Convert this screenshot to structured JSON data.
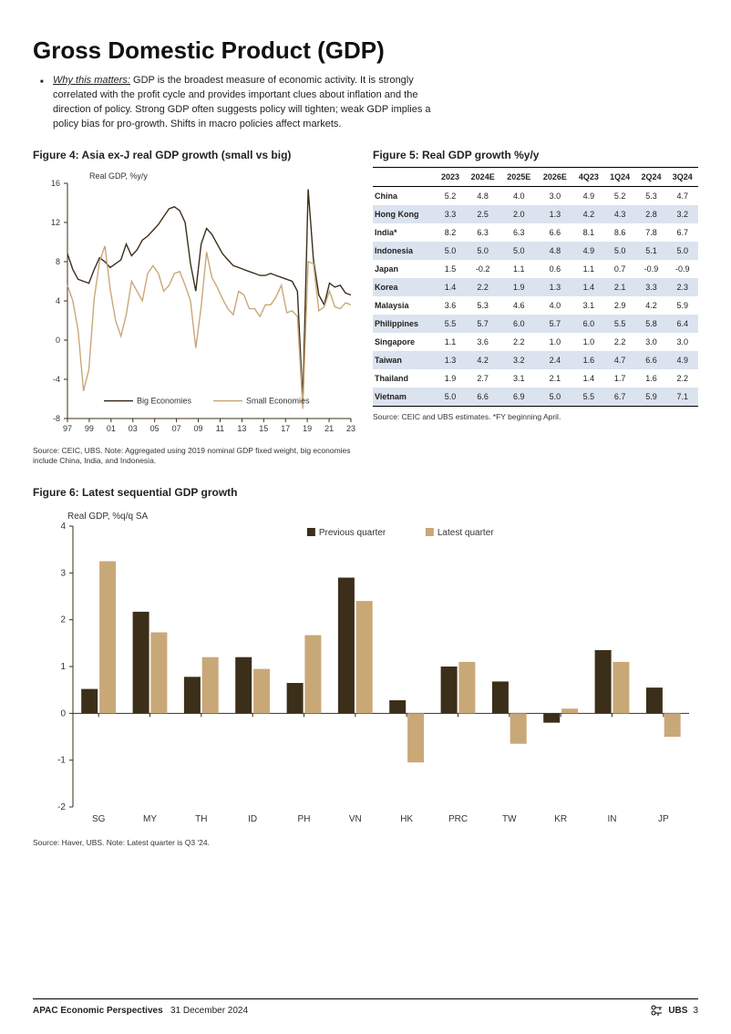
{
  "page": {
    "title": "Gross Domestic Product (GDP)",
    "why_lead": "Why this matters:",
    "why_body": " GDP is the broadest measure of economic activity. It is strongly correlated with the profit cycle and provides important clues about inflation and the direction of policy. Strong GDP often suggests policy will tighten; weak GDP implies a policy bias for pro-growth. Shifts in macro policies affect markets."
  },
  "fig4": {
    "title": "Figure 4: Asia ex-J real GDP growth (small vs big)",
    "ylabel": "Real GDP, %y/y",
    "ylim": [
      -8,
      16
    ],
    "ytick_step": 4,
    "xticks": [
      "97",
      "99",
      "01",
      "03",
      "05",
      "07",
      "09",
      "11",
      "13",
      "15",
      "17",
      "19",
      "21",
      "23"
    ],
    "legend": {
      "big": "Big Economies",
      "small": "Small Economies"
    },
    "colors": {
      "big": "#3b2f1a",
      "small": "#c9a878",
      "axis": "#3b2f1a",
      "grid": "#ffffff"
    },
    "line_width": 1.4,
    "series_big": [
      8.8,
      7.2,
      6.2,
      6.0,
      5.8,
      7.2,
      8.4,
      8.0,
      7.4,
      7.8,
      8.2,
      9.8,
      8.6,
      9.2,
      10.2,
      10.6,
      11.2,
      11.8,
      12.6,
      13.4,
      13.6,
      13.2,
      12.0,
      7.8,
      5.0,
      9.8,
      11.4,
      10.8,
      9.8,
      8.8,
      8.2,
      7.6,
      7.4,
      7.2,
      7.0,
      6.8,
      6.6,
      6.6,
      6.8,
      6.6,
      6.4,
      6.2,
      6.0,
      5.0,
      -6.2,
      15.4,
      8.2,
      4.6,
      3.6,
      5.8,
      5.4,
      5.6,
      4.8,
      4.6
    ],
    "series_small": [
      5.6,
      4.0,
      1.0,
      -5.2,
      -3.0,
      4.2,
      8.0,
      9.6,
      5.2,
      2.0,
      0.4,
      2.6,
      6.0,
      5.0,
      4.0,
      6.8,
      7.6,
      6.8,
      5.0,
      5.6,
      6.8,
      7.0,
      5.6,
      4.0,
      -0.8,
      3.4,
      9.0,
      6.4,
      5.4,
      4.2,
      3.2,
      2.6,
      5.0,
      4.6,
      3.2,
      3.2,
      2.4,
      3.6,
      3.6,
      4.4,
      5.6,
      2.8,
      3.0,
      2.4,
      -7.0,
      8.0,
      7.8,
      3.0,
      3.4,
      5.0,
      3.4,
      3.2,
      3.8,
      3.6
    ],
    "source": "Source: CEIC, UBS. Note: Aggregated using 2019 nominal GDP fixed weight, big economies include China, India, and Indonesia."
  },
  "fig5": {
    "title": "Figure 5: Real GDP growth %y/y",
    "columns": [
      "",
      "2023",
      "2024E",
      "2025E",
      "2026E",
      "4Q23",
      "1Q24",
      "2Q24",
      "3Q24"
    ],
    "shade_color": "#dbe3ef",
    "rows": [
      {
        "c": "China",
        "v": [
          "5.2",
          "4.8",
          "4.0",
          "3.0",
          "4.9",
          "5.2",
          "5.3",
          "4.7"
        ],
        "shade": false
      },
      {
        "c": "Hong Kong",
        "v": [
          "3.3",
          "2.5",
          "2.0",
          "1.3",
          "4.2",
          "4.3",
          "2.8",
          "3.2"
        ],
        "shade": true
      },
      {
        "c": "India*",
        "v": [
          "8.2",
          "6.3",
          "6.3",
          "6.6",
          "8.1",
          "8.6",
          "7.8",
          "6.7"
        ],
        "shade": false
      },
      {
        "c": "Indonesia",
        "v": [
          "5.0",
          "5.0",
          "5.0",
          "4.8",
          "4.9",
          "5.0",
          "5.1",
          "5.0"
        ],
        "shade": true
      },
      {
        "c": "Japan",
        "v": [
          "1.5",
          "-0.2",
          "1.1",
          "0.6",
          "1.1",
          "0.7",
          "-0.9",
          "-0.9"
        ],
        "shade": false
      },
      {
        "c": "Korea",
        "v": [
          "1.4",
          "2.2",
          "1.9",
          "1.3",
          "1.4",
          "2.1",
          "3.3",
          "2.3"
        ],
        "shade": true
      },
      {
        "c": "Malaysia",
        "v": [
          "3.6",
          "5.3",
          "4.6",
          "4.0",
          "3.1",
          "2.9",
          "4.2",
          "5.9"
        ],
        "shade": false
      },
      {
        "c": "Philippines",
        "v": [
          "5.5",
          "5.7",
          "6.0",
          "5.7",
          "6.0",
          "5.5",
          "5.8",
          "6.4"
        ],
        "shade": true
      },
      {
        "c": "Singapore",
        "v": [
          "1.1",
          "3.6",
          "2.2",
          "1.0",
          "1.0",
          "2.2",
          "3.0",
          "3.0"
        ],
        "shade": false
      },
      {
        "c": "Taiwan",
        "v": [
          "1.3",
          "4.2",
          "3.2",
          "2.4",
          "1.6",
          "4.7",
          "6.6",
          "4.9"
        ],
        "shade": true
      },
      {
        "c": "Thailand",
        "v": [
          "1.9",
          "2.7",
          "3.1",
          "2.1",
          "1.4",
          "1.7",
          "1.6",
          "2.2"
        ],
        "shade": false
      },
      {
        "c": "Vietnam",
        "v": [
          "5.0",
          "6.6",
          "6.9",
          "5.0",
          "5.5",
          "6.7",
          "5.9",
          "7.1"
        ],
        "shade": true
      }
    ],
    "source": "Source: CEIC and UBS estimates.   *FY beginning April."
  },
  "fig6": {
    "title": "Figure 6: Latest sequential GDP growth",
    "ylabel": "Real GDP, %q/q SA",
    "ylim": [
      -2,
      4
    ],
    "ytick_step": 1,
    "categories": [
      "SG",
      "MY",
      "TH",
      "ID",
      "PH",
      "VN",
      "HK",
      "PRC",
      "TW",
      "KR",
      "IN",
      "JP"
    ],
    "legend": {
      "prev": "Previous quarter",
      "latest": "Latest quarter"
    },
    "colors": {
      "prev": "#3b2f1a",
      "latest": "#c9a878",
      "axis": "#3b2f1a"
    },
    "bar_width": 0.32,
    "prev": [
      0.52,
      2.17,
      0.78,
      1.2,
      0.65,
      2.9,
      0.28,
      1.0,
      0.68,
      -0.2,
      1.35,
      0.55
    ],
    "latest": [
      3.25,
      1.73,
      1.2,
      0.95,
      1.67,
      2.4,
      -1.05,
      1.1,
      -0.65,
      0.1,
      1.1,
      -0.5
    ],
    "source": "Source: Haver, UBS. Note: Latest quarter is Q3 '24."
  },
  "footer": {
    "pub": "APAC Economic Perspectives",
    "date": "31 December 2024",
    "brand": "UBS",
    "page_no": "3"
  }
}
